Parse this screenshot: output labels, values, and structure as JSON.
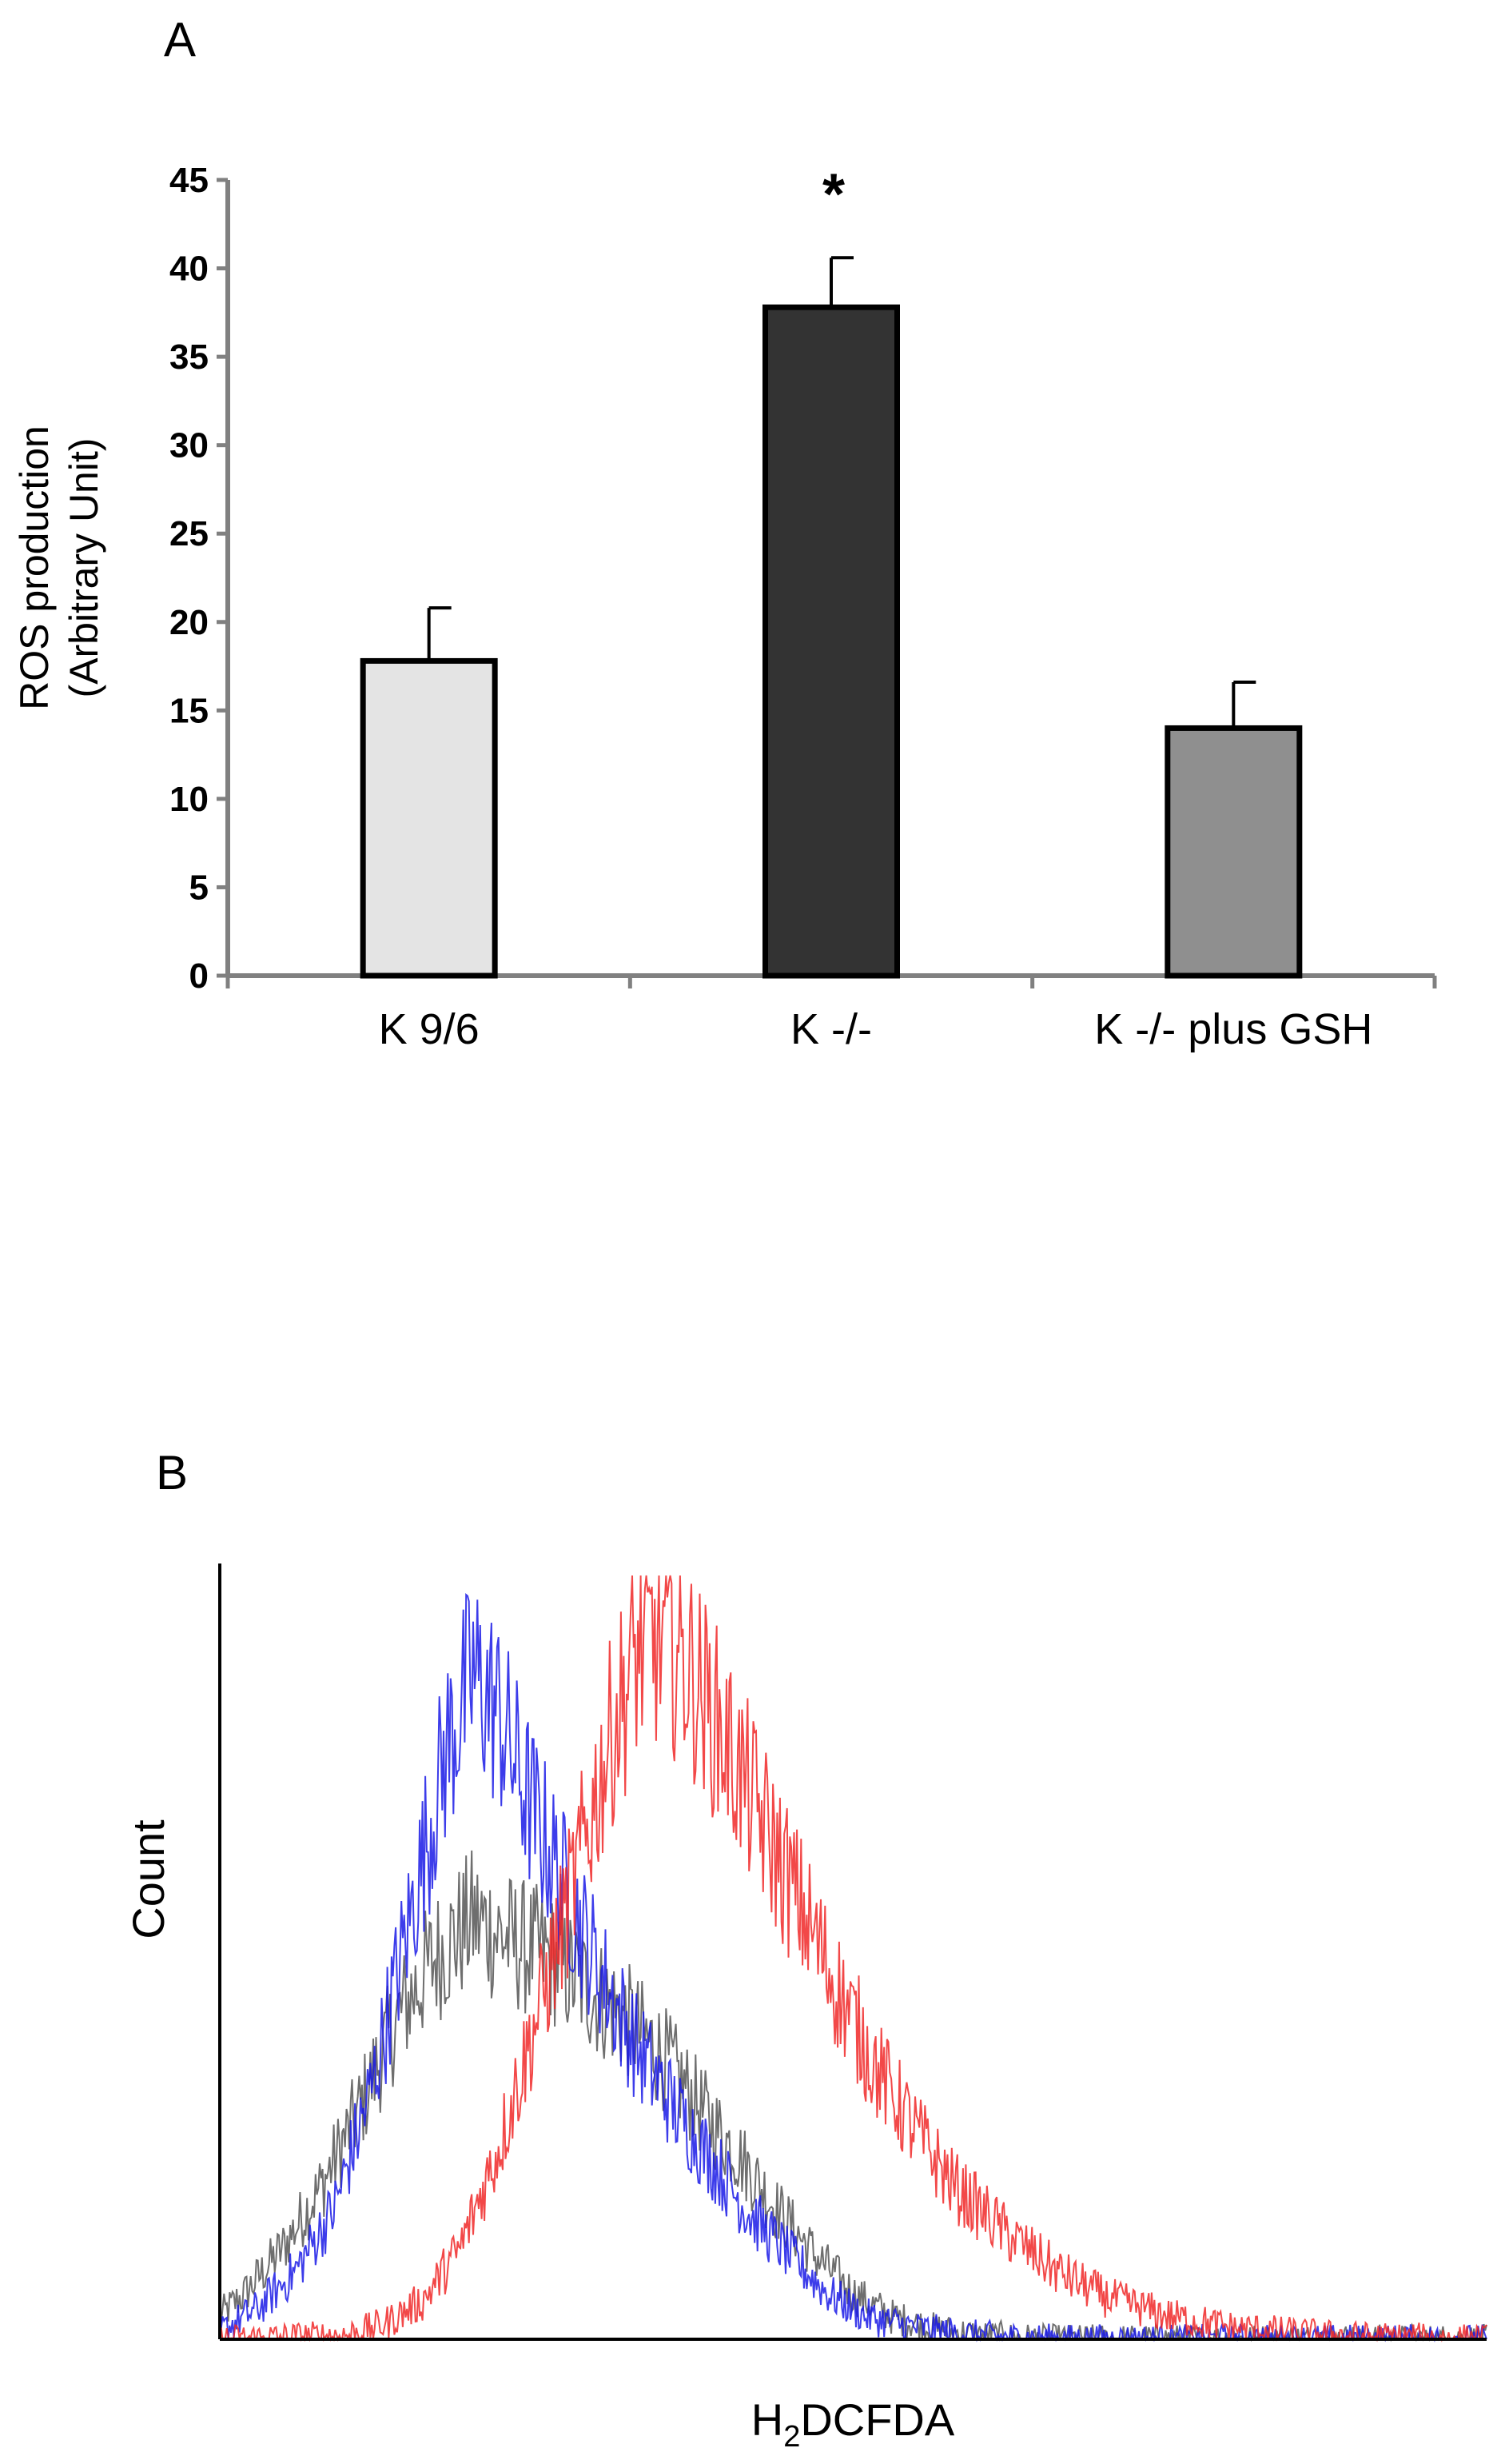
{
  "colors": {
    "axis": "#808080",
    "bar_outline": "#000000",
    "black_trace": "#555555",
    "blue_trace": "#1a1ae6",
    "red_trace": "#f02828"
  },
  "chart_data": [
    {
      "type": "bar",
      "panel_label": "A",
      "title": "",
      "xlabel": "",
      "ylabel": [
        "ROS production",
        "(Arbitrary Unit)"
      ],
      "categories": [
        "K 9/6",
        "K -/-",
        "K -/- plus GSH"
      ],
      "values": [
        17.8,
        37.8,
        14.0
      ],
      "errors": [
        3.0,
        2.8,
        2.6
      ],
      "bar_colors": [
        "#e4e4e4",
        "#333333",
        "#8f8f8f"
      ],
      "annotations": [
        {
          "category": "K -/-",
          "text": "*"
        }
      ],
      "ylim": [
        0,
        45
      ],
      "yticks": [
        0,
        5,
        10,
        15,
        20,
        25,
        30,
        35,
        40,
        45
      ],
      "grid": false
    },
    {
      "type": "line",
      "panel_label": "B",
      "title": "",
      "xlabel_main": "H",
      "xlabel_sub": "2",
      "xlabel_rest": "DCFDA",
      "xlabel": "H2DCFDA",
      "ylabel": "Count",
      "xlim": [
        0,
        1
      ],
      "ylim": [
        0,
        1
      ],
      "grid": false,
      "series": [
        {
          "name": "black",
          "color": "#555555",
          "x": [
            0,
            0.02,
            0.05,
            0.08,
            0.11,
            0.14,
            0.17,
            0.2,
            0.23,
            0.26,
            0.29,
            0.32,
            0.35,
            0.38,
            0.41,
            0.44,
            0.47,
            0.5,
            0.53,
            0.56,
            0.6,
            0.65,
            1.0
          ],
          "y": [
            0.03,
            0.06,
            0.12,
            0.2,
            0.3,
            0.42,
            0.5,
            0.55,
            0.52,
            0.5,
            0.46,
            0.42,
            0.37,
            0.3,
            0.24,
            0.17,
            0.11,
            0.06,
            0.03,
            0.015,
            0.005,
            0.0,
            0.0
          ]
        },
        {
          "name": "blue",
          "color": "#1a1ae6",
          "x": [
            0,
            0.03,
            0.06,
            0.09,
            0.12,
            0.15,
            0.18,
            0.2,
            0.22,
            0.24,
            0.27,
            0.3,
            0.33,
            0.36,
            0.39,
            0.42,
            0.45,
            0.48,
            0.51,
            0.55,
            0.58,
            0.62,
            0.68,
            1.0
          ],
          "y": [
            0.01,
            0.04,
            0.09,
            0.17,
            0.33,
            0.55,
            0.78,
            0.87,
            0.82,
            0.72,
            0.6,
            0.48,
            0.38,
            0.3,
            0.23,
            0.16,
            0.11,
            0.06,
            0.03,
            0.015,
            0.008,
            0.002,
            0.0,
            0.0
          ]
        },
        {
          "name": "red",
          "color": "#f02828",
          "x": [
            0,
            0.1,
            0.13,
            0.16,
            0.19,
            0.22,
            0.25,
            0.28,
            0.31,
            0.33,
            0.35,
            0.37,
            0.4,
            0.43,
            0.46,
            0.49,
            0.52,
            0.55,
            0.58,
            0.62,
            0.66,
            0.7,
            0.75,
            0.8,
            0.85,
            0.9,
            1.0
          ],
          "y": [
            0.0,
            0.005,
            0.02,
            0.05,
            0.12,
            0.25,
            0.42,
            0.6,
            0.8,
            0.9,
            0.92,
            0.88,
            0.78,
            0.67,
            0.56,
            0.45,
            0.35,
            0.27,
            0.2,
            0.14,
            0.09,
            0.055,
            0.03,
            0.015,
            0.008,
            0.003,
            0.0
          ]
        }
      ]
    }
  ]
}
